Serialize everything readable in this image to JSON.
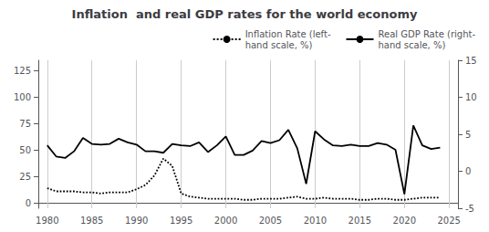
{
  "chart_data": {
    "type": "line",
    "title": "Inflation  and real GDP rates for the world economy",
    "x": [
      1980,
      1981,
      1982,
      1983,
      1984,
      1985,
      1986,
      1987,
      1988,
      1989,
      1990,
      1991,
      1992,
      1993,
      1994,
      1995,
      1996,
      1997,
      1998,
      1999,
      2000,
      2001,
      2002,
      2003,
      2004,
      2005,
      2006,
      2007,
      2008,
      2009,
      2010,
      2011,
      2012,
      2013,
      2014,
      2015,
      2016,
      2017,
      2018,
      2019,
      2020,
      2021,
      2022,
      2023,
      2024
    ],
    "series": [
      {
        "name": "Inflation Rate (left-\nhand scale, %)",
        "color": "#000000",
        "line_style": "dotted",
        "values": [
          14,
          11,
          11,
          11,
          10,
          10,
          9,
          10,
          10,
          10,
          13,
          17,
          26,
          42,
          35,
          9,
          6,
          5,
          4,
          4,
          4,
          4,
          3,
          3,
          4,
          4,
          4,
          5,
          6,
          4,
          4,
          5,
          4,
          4,
          4,
          3,
          3,
          4,
          4,
          3,
          3,
          4,
          5,
          5,
          5
        ]
      },
      {
        "name": "Real GDP Rate (right-\nhand scale, %)",
        "color": "#000000",
        "line_style": "solid",
        "axis": "y2",
        "values": [
          3.5,
          2.0,
          1.8,
          2.7,
          4.5,
          3.7,
          3.6,
          3.7,
          4.4,
          3.9,
          3.6,
          2.7,
          2.7,
          2.5,
          3.7,
          3.5,
          3.4,
          3.9,
          2.6,
          3.5,
          4.7,
          2.2,
          2.2,
          2.8,
          4.1,
          3.8,
          4.2,
          5.6,
          3.1,
          -1.7,
          5.4,
          4.3,
          3.5,
          3.4,
          3.6,
          3.4,
          3.4,
          3.8,
          3.6,
          2.9,
          -3.1,
          6.2,
          3.5,
          3.0,
          3.2
        ]
      }
    ],
    "xlim": [
      1979,
      2026
    ],
    "xticks": [
      1980,
      1985,
      1990,
      1995,
      2000,
      2005,
      2010,
      2015,
      2020,
      2025
    ],
    "ylim": [
      -5,
      135
    ],
    "yticks": [
      0,
      25,
      50,
      75,
      100,
      125
    ],
    "y2lim": [
      -5,
      15
    ],
    "y2ticks": [
      -5,
      0,
      5,
      10,
      15
    ],
    "grid": true,
    "legend": "upper right"
  }
}
